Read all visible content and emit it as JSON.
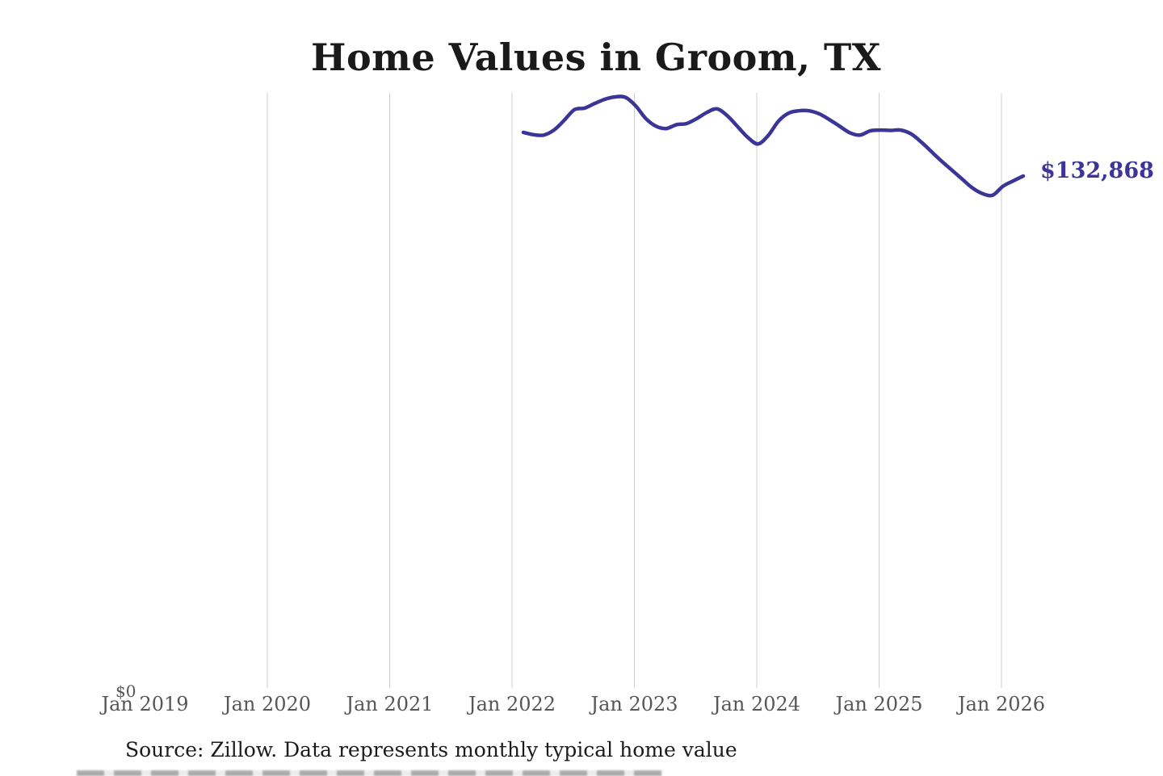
{
  "header": {
    "title": "Home Values in Groom, TX"
  },
  "chart_data": {
    "type": "line",
    "title": "Home Values in Groom, TX",
    "series_name": "Monthly typical home value",
    "months": [
      "Jan 2022",
      "Feb 2022",
      "Mar 2022",
      "Apr 2022",
      "May 2022",
      "Jun 2022",
      "Jul 2022",
      "Aug 2022",
      "Sep 2022",
      "Oct 2022",
      "Nov 2022",
      "Dec 2022",
      "Jan 2023",
      "Feb 2023",
      "Mar 2023",
      "Apr 2023",
      "May 2023",
      "Jun 2023",
      "Jul 2023",
      "Aug 2023",
      "Sep 2023",
      "Oct 2023",
      "Nov 2023",
      "Dec 2023",
      "Jan 2024",
      "Feb 2024",
      "Mar 2024",
      "Apr 2024",
      "May 2024",
      "Jun 2024",
      "Jul 2024",
      "Aug 2024",
      "Sep 2024",
      "Oct 2024",
      "Nov 2024",
      "Dec 2024",
      "Jan 2025",
      "Feb 2025",
      "Mar 2025",
      "Apr 2025",
      "May 2025",
      "Jun 2025",
      "Jul 2025",
      "Aug 2025",
      "Sep 2025",
      "Oct 2025",
      "Nov 2025",
      "Dec 2025",
      "Jan 2026",
      "Feb 2026"
    ],
    "values": [
      144200,
      143600,
      143500,
      144800,
      147300,
      150100,
      150500,
      151700,
      152800,
      153400,
      153300,
      151100,
      147800,
      145800,
      145200,
      146200,
      146500,
      147800,
      149400,
      150300,
      148500,
      145700,
      142900,
      141200,
      143400,
      147100,
      149200,
      149800,
      149800,
      149000,
      147500,
      145800,
      144100,
      143500,
      144600,
      144800,
      144700,
      144800,
      143800,
      141700,
      139200,
      136700,
      134400,
      132100,
      129800,
      128300,
      127900,
      130200,
      131600,
      132868
    ],
    "end_label": "$132,868",
    "xlabel": "",
    "ylabel": "",
    "x_axis": {
      "tick_labels": [
        "Jan 2019",
        "Jan 2020",
        "Jan 2021",
        "Jan 2022",
        "Jan 2023",
        "Jan 2024",
        "Jan 2025",
        "Jan 2026"
      ],
      "first_gridline_index": 1
    },
    "y_axis": {
      "zero_label": "$0",
      "ylim": [
        0,
        154500
      ]
    },
    "grid": "vertical-only",
    "legend": "none"
  },
  "footer": {
    "source_text": "Source: Zillow. Data represents monthly typical home value"
  },
  "colors": {
    "line": "#3b3597",
    "end_label": "#3b3597",
    "gridline": "#cfcfcf",
    "axis_label": "#565656",
    "title": "#1a1a1a",
    "source": "#1c1c1c"
  }
}
